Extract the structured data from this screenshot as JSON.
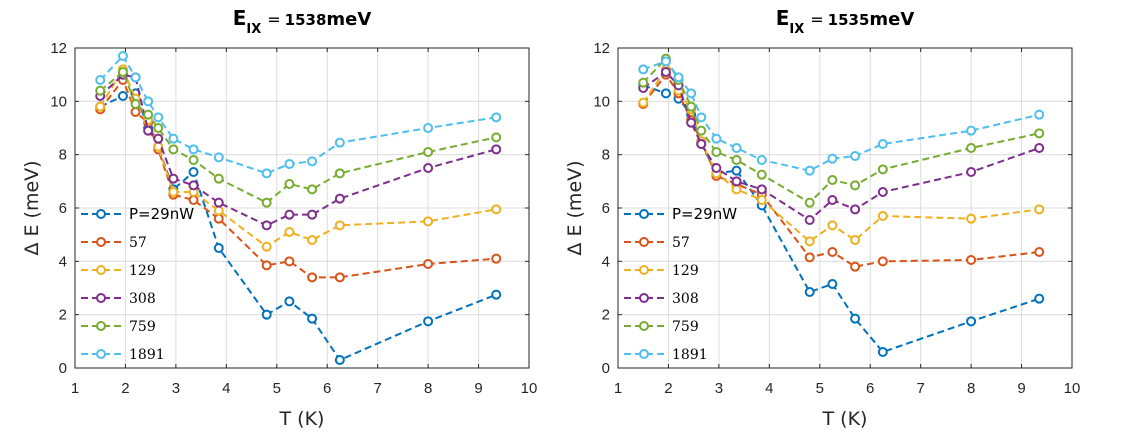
{
  "chart_data": [
    {
      "type": "line",
      "title": {
        "main": "E",
        "sub": "IX",
        "eq": "=",
        "value": "1538",
        "unit": "meV"
      },
      "xlabel": "T (K)",
      "ylabel": "Δ E (meV)",
      "xlim": [
        1,
        10
      ],
      "ylim": [
        0,
        12
      ],
      "xticks": [
        "1",
        "2",
        "3",
        "4",
        "5",
        "6",
        "7",
        "8",
        "9",
        "10"
      ],
      "yticks": [
        "0",
        "2",
        "4",
        "6",
        "8",
        "10",
        "12"
      ],
      "grid": true,
      "legend_position": "left",
      "series": [
        {
          "name": "P=29nW",
          "color": "#0072BD",
          "x": [
            1.5,
            1.95,
            2.2,
            2.45,
            2.65,
            2.95,
            3.35,
            3.85,
            4.8,
            5.25,
            5.7,
            6.25,
            8.0,
            9.35
          ],
          "y": [
            9.8,
            10.2,
            10.3,
            9.0,
            8.3,
            6.7,
            7.35,
            4.5,
            2.0,
            2.5,
            1.85,
            0.3,
            1.75,
            2.75
          ]
        },
        {
          "name": " 57",
          "color": "#D95319",
          "x": [
            1.5,
            1.95,
            2.2,
            2.45,
            2.65,
            2.95,
            3.35,
            3.85,
            4.8,
            5.25,
            5.7,
            6.25,
            8.0,
            9.35
          ],
          "y": [
            9.7,
            10.8,
            9.6,
            9.2,
            8.2,
            6.5,
            6.3,
            5.6,
            3.85,
            4.0,
            3.4,
            3.4,
            3.9,
            4.1
          ]
        },
        {
          "name": "129",
          "color": "#EDB120",
          "x": [
            1.5,
            1.95,
            2.2,
            2.45,
            2.65,
            2.95,
            3.35,
            3.85,
            4.8,
            5.25,
            5.7,
            6.25,
            8.0,
            9.35
          ],
          "y": [
            9.8,
            11.2,
            10.1,
            9.3,
            8.3,
            6.6,
            6.6,
            5.9,
            4.55,
            5.1,
            4.8,
            5.35,
            5.5,
            5.95
          ]
        },
        {
          "name": "308",
          "color": "#7E2F8E",
          "x": [
            1.5,
            1.95,
            2.2,
            2.45,
            2.65,
            2.95,
            3.35,
            3.85,
            4.8,
            5.25,
            5.7,
            6.25,
            8.0,
            9.35
          ],
          "y": [
            10.2,
            11.0,
            10.9,
            8.9,
            8.6,
            7.1,
            6.85,
            6.2,
            5.35,
            5.75,
            5.75,
            6.35,
            7.5,
            8.2
          ]
        },
        {
          "name": "759",
          "color": "#77AC30",
          "x": [
            1.5,
            1.95,
            2.2,
            2.45,
            2.65,
            2.95,
            3.35,
            3.85,
            4.8,
            5.25,
            5.7,
            6.25,
            8.0,
            9.35
          ],
          "y": [
            10.4,
            11.1,
            9.9,
            9.5,
            9.0,
            8.2,
            7.8,
            7.1,
            6.2,
            6.9,
            6.7,
            7.3,
            8.1,
            8.65
          ]
        },
        {
          "name": "1891",
          "color": "#4DBEEE",
          "x": [
            1.5,
            1.95,
            2.2,
            2.45,
            2.65,
            2.95,
            3.35,
            3.85,
            4.8,
            5.25,
            5.7,
            6.25,
            8.0,
            9.35
          ],
          "y": [
            10.8,
            11.7,
            10.9,
            10.0,
            9.4,
            8.6,
            8.2,
            7.9,
            7.3,
            7.65,
            7.75,
            8.45,
            9.0,
            9.4
          ]
        }
      ]
    },
    {
      "type": "line",
      "title": {
        "main": "E",
        "sub": "IX",
        "eq": "=",
        "value": "1535",
        "unit": "meV"
      },
      "xlabel": "T (K)",
      "ylabel": "Δ E (meV)",
      "xlim": [
        1,
        10
      ],
      "ylim": [
        0,
        12
      ],
      "xticks": [
        "1",
        "2",
        "3",
        "4",
        "5",
        "6",
        "7",
        "8",
        "9",
        "10"
      ],
      "yticks": [
        "0",
        "2",
        "4",
        "6",
        "8",
        "10",
        "12"
      ],
      "grid": true,
      "legend_position": "left",
      "series": [
        {
          "name": "P=29nW",
          "color": "#0072BD",
          "x": [
            1.5,
            1.95,
            2.2,
            2.45,
            2.65,
            2.95,
            3.35,
            3.85,
            4.8,
            5.25,
            5.7,
            6.25,
            8.0,
            9.35
          ],
          "y": [
            10.6,
            10.3,
            10.1,
            9.5,
            8.4,
            7.3,
            7.4,
            6.1,
            2.85,
            3.15,
            1.85,
            0.6,
            1.75,
            2.6
          ]
        },
        {
          "name": " 57",
          "color": "#D95319",
          "x": [
            1.5,
            1.95,
            2.2,
            2.45,
            2.65,
            2.95,
            3.35,
            3.85,
            4.8,
            5.25,
            5.7,
            6.25,
            8.0,
            9.35
          ],
          "y": [
            9.9,
            11.0,
            10.3,
            9.3,
            8.5,
            7.2,
            6.9,
            6.5,
            4.15,
            4.35,
            3.8,
            4.0,
            4.05,
            4.35
          ]
        },
        {
          "name": "129",
          "color": "#EDB120",
          "x": [
            1.5,
            1.95,
            2.2,
            2.45,
            2.65,
            2.95,
            3.35,
            3.85,
            4.8,
            5.25,
            5.7,
            6.25,
            8.0,
            9.35
          ],
          "y": [
            9.95,
            11.2,
            10.4,
            9.7,
            8.5,
            7.3,
            6.7,
            6.3,
            4.75,
            5.35,
            4.8,
            5.7,
            5.6,
            5.95
          ]
        },
        {
          "name": "308",
          "color": "#7E2F8E",
          "x": [
            1.5,
            1.95,
            2.2,
            2.45,
            2.65,
            2.95,
            3.35,
            3.85,
            4.8,
            5.25,
            5.7,
            6.25,
            8.0,
            9.35
          ],
          "y": [
            10.5,
            11.1,
            10.6,
            9.2,
            8.4,
            7.5,
            7.0,
            6.7,
            5.55,
            6.3,
            5.95,
            6.6,
            7.35,
            8.25
          ]
        },
        {
          "name": "759",
          "color": "#77AC30",
          "x": [
            1.5,
            1.95,
            2.2,
            2.45,
            2.65,
            2.95,
            3.35,
            3.85,
            4.8,
            5.25,
            5.7,
            6.25,
            8.0,
            9.35
          ],
          "y": [
            10.7,
            11.6,
            10.8,
            9.8,
            8.9,
            8.1,
            7.8,
            7.25,
            6.2,
            7.05,
            6.85,
            7.45,
            8.25,
            8.8
          ]
        },
        {
          "name": "1891",
          "color": "#4DBEEE",
          "x": [
            1.5,
            1.95,
            2.2,
            2.45,
            2.65,
            2.95,
            3.35,
            3.85,
            4.8,
            5.25,
            5.7,
            6.25,
            8.0,
            9.35
          ],
          "y": [
            11.2,
            11.5,
            10.9,
            10.3,
            9.4,
            8.6,
            8.25,
            7.8,
            7.4,
            7.85,
            7.95,
            8.4,
            8.9,
            9.5
          ]
        }
      ]
    }
  ]
}
